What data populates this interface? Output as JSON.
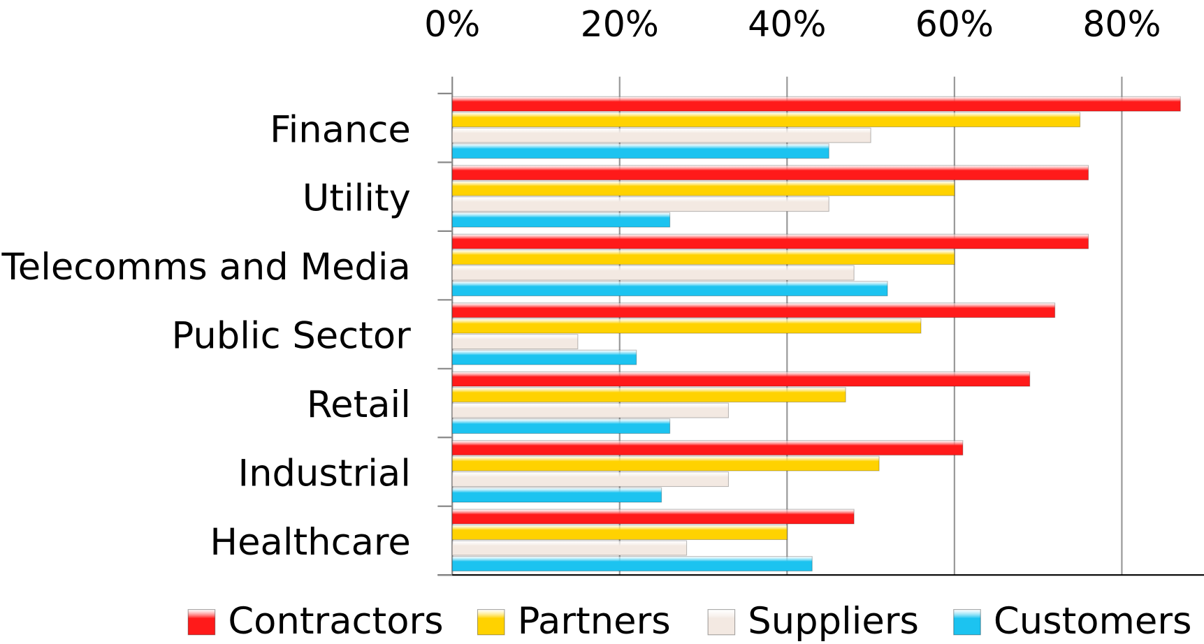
{
  "chart_data": {
    "type": "barh",
    "categories": [
      "Finance",
      "Utility",
      "Telecomms and Media",
      "Public Sector",
      "Retail",
      "Industrial",
      "Healthcare"
    ],
    "series": [
      {
        "name": "Contractors",
        "color": "#ff1a1a",
        "values": [
          87,
          76,
          76,
          72,
          69,
          61,
          48
        ]
      },
      {
        "name": "Partners",
        "color": "#ffd200",
        "values": [
          75,
          60,
          60,
          56,
          47,
          51,
          40
        ]
      },
      {
        "name": "Suppliers",
        "color": "#f3e9e2",
        "values": [
          50,
          45,
          48,
          15,
          33,
          33,
          28
        ]
      },
      {
        "name": "Customers",
        "color": "#1cc3f0",
        "values": [
          45,
          26,
          52,
          22,
          26,
          25,
          43
        ]
      }
    ],
    "xlim": [
      0,
      90
    ],
    "xticks": [
      {
        "value": 0,
        "label": "0%"
      },
      {
        "value": 20,
        "label": "20%"
      },
      {
        "value": 40,
        "label": "40%"
      },
      {
        "value": 60,
        "label": "60%"
      },
      {
        "value": 80,
        "label": "80%"
      }
    ],
    "grid": true,
    "legend": "bottom"
  }
}
